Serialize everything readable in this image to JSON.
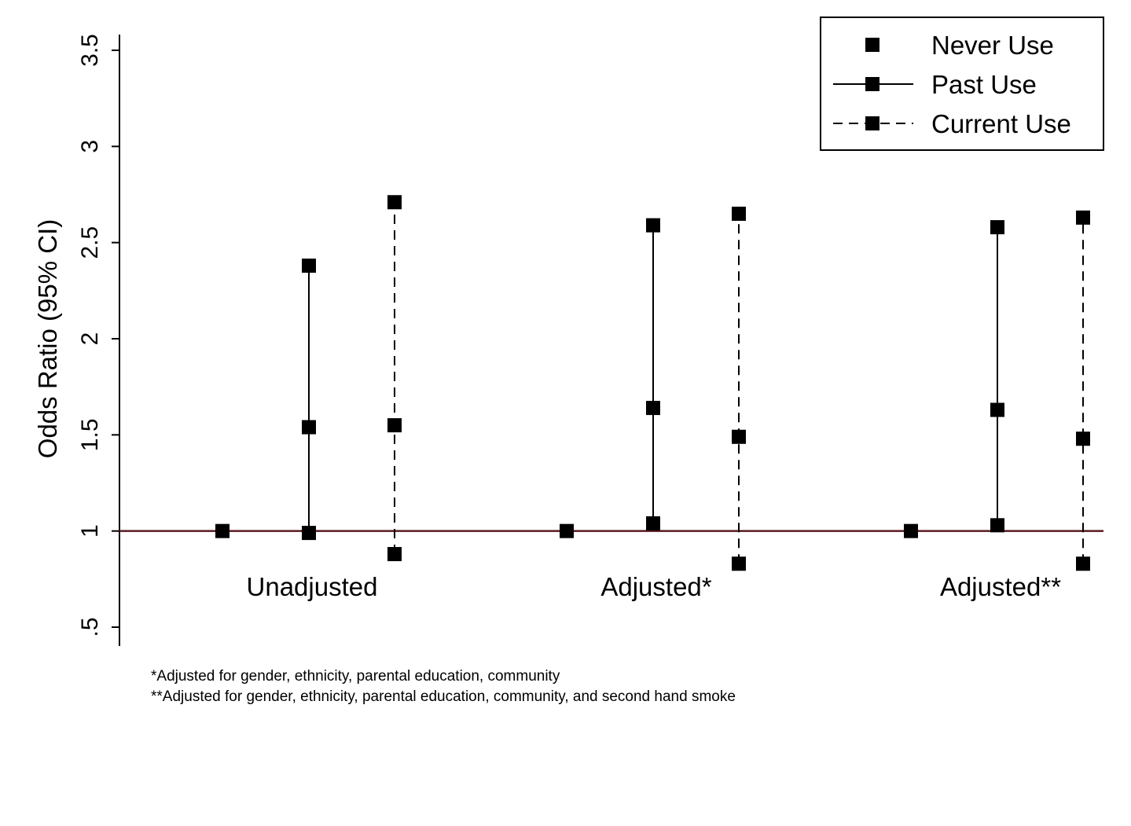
{
  "chart_data": {
    "type": "scatter",
    "ylabel": "Odds Ratio (95% CI)",
    "ylim": [
      0.5,
      3.5
    ],
    "yticks": [
      0.5,
      1,
      1.5,
      2,
      2.5,
      3,
      3.5
    ],
    "ytick_labels": [
      ".5",
      "1",
      "1.5",
      "2",
      "2.5",
      "3",
      "3.5"
    ],
    "reference_line": 1,
    "reference_line_color": "#5a1a22",
    "legend_position": "top-right",
    "groups": [
      {
        "label": "Unadjusted",
        "never": {
          "or": 1.0
        },
        "past": {
          "or": 1.54,
          "lower": 0.99,
          "upper": 2.38
        },
        "current": {
          "or": 1.55,
          "lower": 0.88,
          "upper": 2.71
        }
      },
      {
        "label": "Adjusted*",
        "never": {
          "or": 1.0
        },
        "past": {
          "or": 1.64,
          "lower": 1.04,
          "upper": 2.59
        },
        "current": {
          "or": 1.49,
          "lower": 0.83,
          "upper": 2.65
        }
      },
      {
        "label": "Adjusted**",
        "never": {
          "or": 1.0
        },
        "past": {
          "or": 1.63,
          "lower": 1.03,
          "upper": 2.58
        },
        "current": {
          "or": 1.48,
          "lower": 0.83,
          "upper": 2.63
        }
      }
    ],
    "series": [
      {
        "name": "Never Use",
        "line": "none"
      },
      {
        "name": "Past Use",
        "line": "solid"
      },
      {
        "name": "Current Use",
        "line": "dashed"
      }
    ]
  },
  "footnotes": [
    "*Adjusted for gender, ethnicity, parental education, community",
    "**Adjusted for gender, ethnicity, parental education, community, and second hand smoke"
  ]
}
